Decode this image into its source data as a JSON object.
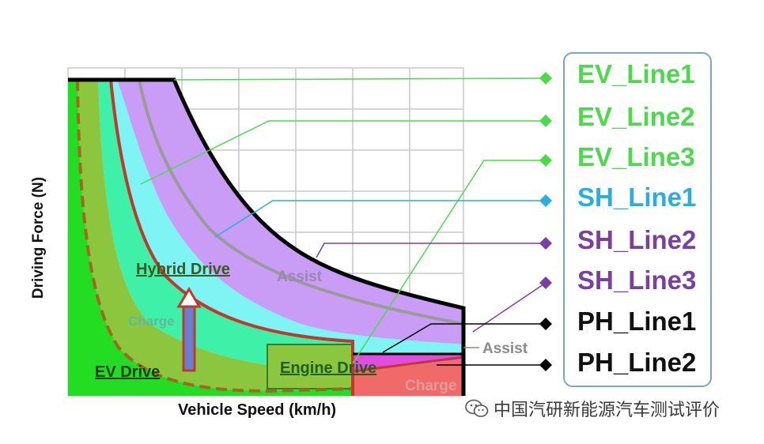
{
  "axes": {
    "x_label": "Vehicle Speed (km/h)",
    "y_label": "Driving Force (N)"
  },
  "regions": {
    "hybrid": "Hybrid Drive",
    "ev": "EV Drive",
    "engine": "Engine Drive",
    "assist_upper": "Assist",
    "assist_lower": "Assist",
    "charge_upper": "Charge",
    "charge_lower": "Charge"
  },
  "legend": [
    {
      "label": "EV_Line1",
      "color": "#4cd94c"
    },
    {
      "label": "EV_Line2",
      "color": "#4cd94c"
    },
    {
      "label": "EV_Line3",
      "color": "#4cd94c"
    },
    {
      "label": "SH_Line1",
      "color": "#29aee0"
    },
    {
      "label": "SH_Line2",
      "color": "#7b3fa0"
    },
    {
      "label": "SH_Line3",
      "color": "#7b3fa0"
    },
    {
      "label": "PH_Line1",
      "color": "#111111"
    },
    {
      "label": "PH_Line2",
      "color": "#111111"
    }
  ],
  "watermark": {
    "icon": "wechat-icon",
    "text": "中国汽研新能源汽车测试评价"
  },
  "colors": {
    "ev_green": "#22dd22",
    "olive": "#8cc63f",
    "teal": "#3ef0a8",
    "cyan": "#7ff4f4",
    "lilac": "#c99cf5",
    "charge_red": "#f06a6a",
    "boundary_red": "#c0392b",
    "boundary_black": "#000000"
  }
}
